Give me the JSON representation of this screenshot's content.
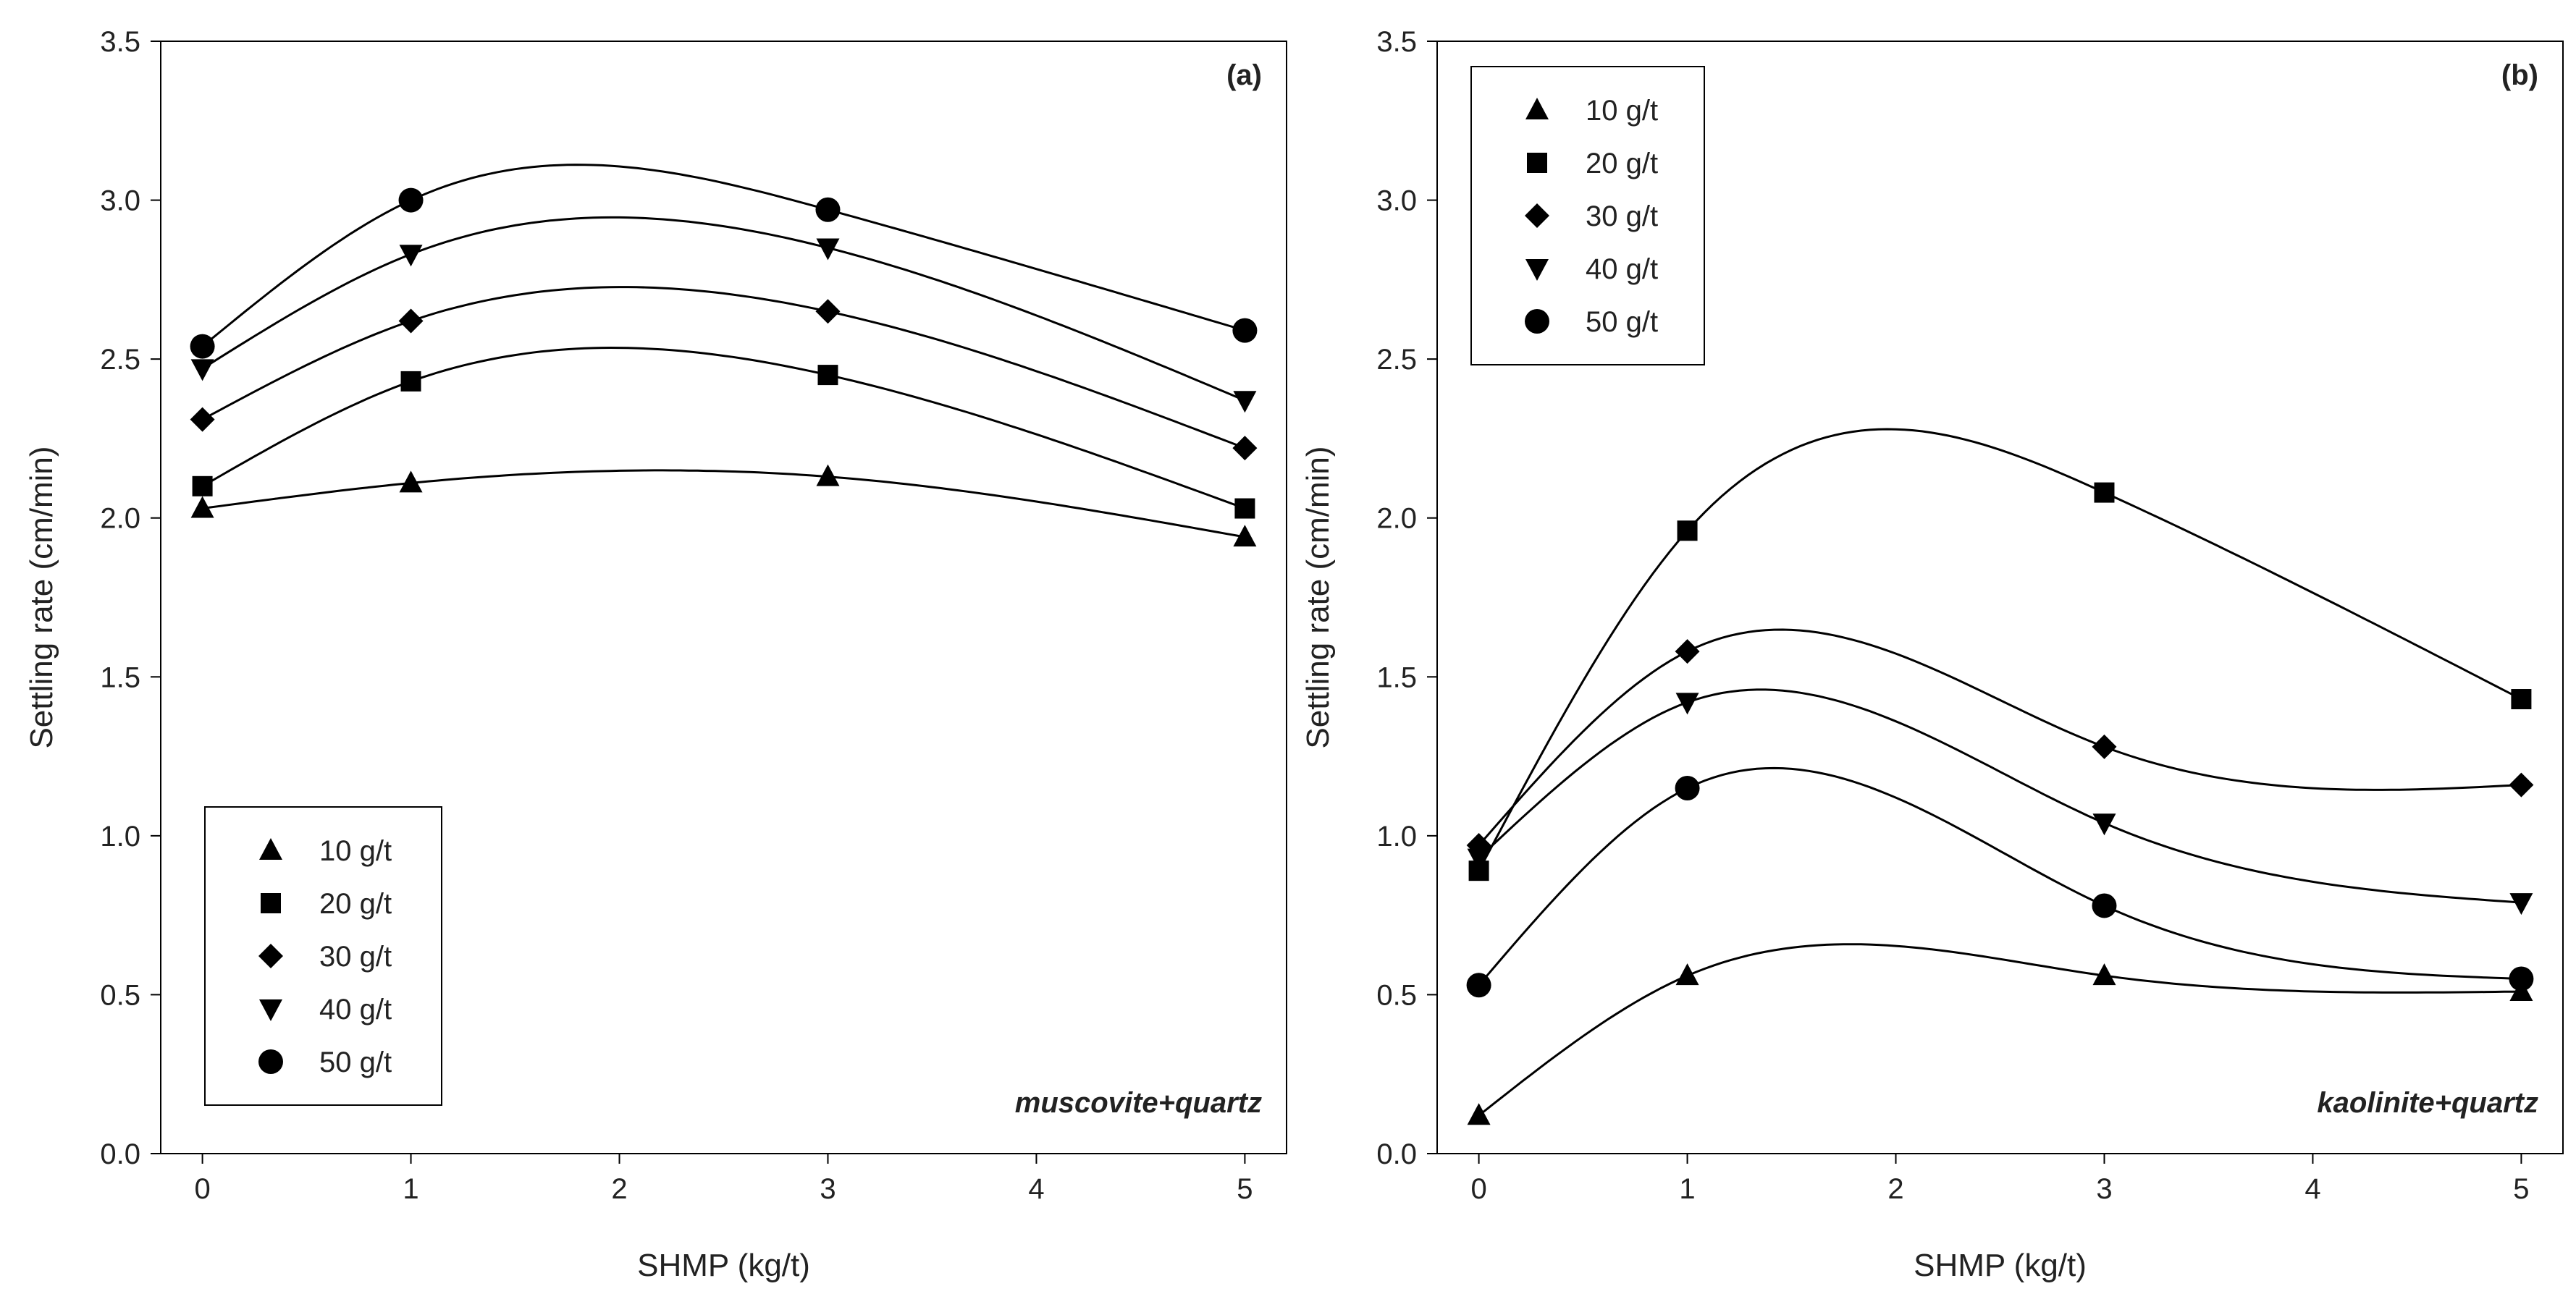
{
  "chart_data": [
    {
      "type": "line",
      "panel_label": "(a)",
      "annotation": "muscovite+quartz",
      "xlabel": "SHMP (kg/t)",
      "ylabel": "Settling rate (cm/min)",
      "xlim": [
        -0.2,
        5.2
      ],
      "ylim": [
        0.0,
        3.5
      ],
      "xticks": [
        "0",
        "1",
        "2",
        "3",
        "4",
        "5"
      ],
      "yticks": [
        "0.0",
        "0.5",
        "1.0",
        "1.5",
        "2.0",
        "2.5",
        "3.0",
        "3.5"
      ],
      "legend_position": "bottom-left",
      "grid": false,
      "x": [
        0,
        1,
        3,
        5
      ],
      "series": [
        {
          "name": "10 g/t",
          "marker": "triangle-up",
          "values": [
            2.03,
            2.11,
            2.13,
            1.94
          ]
        },
        {
          "name": "20 g/t",
          "marker": "square",
          "values": [
            2.1,
            2.43,
            2.45,
            2.03
          ]
        },
        {
          "name": "30 g/t",
          "marker": "diamond",
          "values": [
            2.31,
            2.62,
            2.65,
            2.22
          ]
        },
        {
          "name": "40 g/t",
          "marker": "triangle-down",
          "values": [
            2.47,
            2.83,
            2.85,
            2.37
          ]
        },
        {
          "name": "50 g/t",
          "marker": "circle",
          "values": [
            2.54,
            3.0,
            2.97,
            2.59
          ]
        }
      ]
    },
    {
      "type": "line",
      "panel_label": "(b)",
      "annotation": "kaolinite+quartz",
      "xlabel": "SHMP (kg/t)",
      "ylabel": "Settling rate (cm/min)",
      "xlim": [
        -0.2,
        5.2
      ],
      "ylim": [
        0.0,
        3.5
      ],
      "xticks": [
        "0",
        "1",
        "2",
        "3",
        "4",
        "5"
      ],
      "yticks": [
        "0.0",
        "0.5",
        "1.0",
        "1.5",
        "2.0",
        "2.5",
        "3.0",
        "3.5"
      ],
      "legend_position": "top-left",
      "grid": false,
      "x": [
        0,
        1,
        3,
        5
      ],
      "series": [
        {
          "name": "10 g/t",
          "marker": "triangle-up",
          "values": [
            0.12,
            0.56,
            0.56,
            0.51
          ]
        },
        {
          "name": "20 g/t",
          "marker": "square",
          "values": [
            0.89,
            1.96,
            2.08,
            1.43
          ]
        },
        {
          "name": "30 g/t",
          "marker": "diamond",
          "values": [
            0.97,
            1.58,
            1.28,
            1.16
          ]
        },
        {
          "name": "40 g/t",
          "marker": "triangle-down",
          "values": [
            0.93,
            1.42,
            1.04,
            0.79
          ]
        },
        {
          "name": "50 g/t",
          "marker": "circle",
          "values": [
            0.53,
            1.15,
            0.78,
            0.55
          ]
        }
      ]
    }
  ]
}
